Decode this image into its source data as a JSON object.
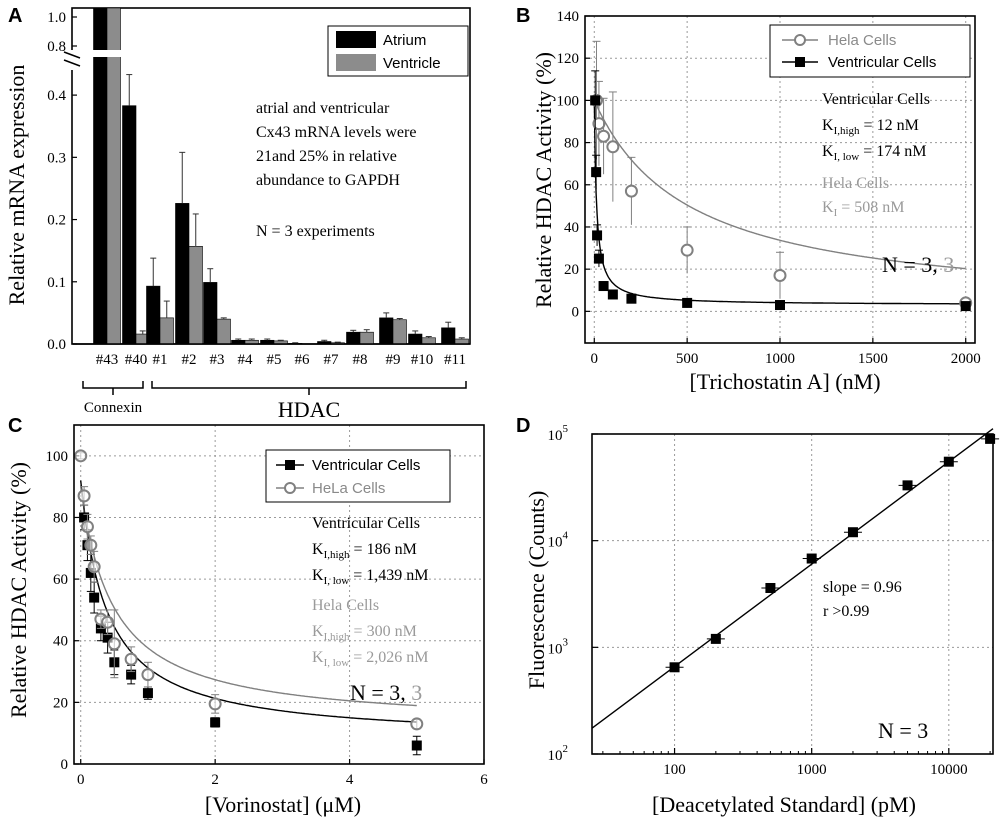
{
  "chart_data": [
    {
      "id": "A",
      "type": "bar",
      "panel_letter": "A",
      "ylabel": "Relative mRNA expression",
      "ylim_lower": [
        0,
        0.45
      ],
      "ylim_upper": [
        0.8,
        1.0
      ],
      "y_ticks_lower": [
        "0.0",
        "0.1",
        "0.2",
        "0.3",
        "0.4"
      ],
      "y_ticks_upper": [
        "0.8",
        "1.0"
      ],
      "categories": [
        "#43",
        "#40",
        "#1",
        "#2",
        "#3",
        "#4",
        "#5",
        "#6",
        "#7",
        "#8",
        "#9",
        "#10",
        "#11"
      ],
      "series": [
        {
          "name": "Atrium",
          "color": "#000000",
          "values": [
            1.0,
            0.383,
            0.093,
            0.226,
            0.099,
            0.006,
            0.006,
            0.001,
            0.004,
            0.019,
            0.042,
            0.016,
            0.026
          ],
          "errors": [
            0.0,
            0.05,
            0.045,
            0.082,
            0.022,
            0.002,
            0.002,
            0.001,
            0.002,
            0.003,
            0.008,
            0.005,
            0.009
          ]
        },
        {
          "name": "Ventricle",
          "color": "#8c8c8c",
          "values": [
            1.0,
            0.016,
            0.042,
            0.157,
            0.04,
            0.006,
            0.005,
            0.0,
            0.002,
            0.019,
            0.039,
            0.01,
            0.008
          ],
          "errors": [
            0.0,
            0.005,
            0.027,
            0.052,
            0.002,
            0.002,
            0.001,
            0.0,
            0.001,
            0.004,
            0.002,
            0.002,
            0.002
          ]
        }
      ],
      "group_labels": {
        "connexin": "Connexin",
        "hdac": "HDAC"
      },
      "annotation_lines": [
        "atrial and ventricular",
        "Cx43 mRNA levels were",
        "21and 25% in relative",
        "abundance to GAPDH"
      ],
      "n_label": "N = 3 experiments"
    },
    {
      "id": "B",
      "type": "scatter",
      "panel_letter": "B",
      "xlabel": "[Trichostatin A]  (nM)",
      "ylabel": "Relative HDAC Activity (%)",
      "xlim": [
        -50,
        2050
      ],
      "ylim": [
        -15,
        140
      ],
      "x_ticks": [
        0,
        500,
        1000,
        1500,
        2000
      ],
      "y_ticks": [
        0,
        20,
        40,
        60,
        80,
        100,
        120,
        140
      ],
      "series": [
        {
          "name": "Hela Cells",
          "marker": "open-circle",
          "color": "#808080",
          "x": [
            12,
            25,
            50,
            100,
            200,
            500,
            1000,
            2000
          ],
          "y": [
            100,
            89,
            83,
            78,
            57,
            29,
            17,
            4
          ],
          "err": [
            28,
            20,
            18,
            26,
            16,
            11,
            11,
            2
          ]
        },
        {
          "name": "Ventricular Cells",
          "marker": "filled-square",
          "color": "#000000",
          "x": [
            5,
            10,
            15,
            25,
            50,
            100,
            200,
            500,
            1000,
            2000
          ],
          "y": [
            100,
            66,
            36,
            25,
            12,
            8,
            6,
            4,
            3,
            2.5
          ],
          "err": [
            14,
            8,
            5,
            4,
            2,
            1.5,
            1,
            1,
            1,
            0.5
          ]
        }
      ],
      "fit_curves": [
        {
          "name": "Hela fit",
          "color": "#808080",
          "ki": 508,
          "top": 100,
          "bottom": 0
        },
        {
          "name": "Ventricular fit",
          "color": "#000000",
          "ki": 12,
          "top": 100,
          "bottom": 3
        }
      ],
      "annotation": {
        "ventricular_title": "Ventricular Cells",
        "k_symbol": "K",
        "k_high_sub": "I,high",
        "k_high_value": " = 12 nM",
        "k_low_sub": "I, low",
        "k_low_value": " = 174 nM",
        "hela_title": "Hela Cells",
        "hela_k_sub": "I",
        "hela_k_value": " = 508 nM"
      },
      "n_label_black": "N = 3, ",
      "n_label_gray": "3"
    },
    {
      "id": "C",
      "type": "scatter",
      "panel_letter": "C",
      "xlabel": "[Vorinostat] (μM)",
      "ylabel": "Relative HDAC Activity (%)",
      "xlim": [
        -0.1,
        6
      ],
      "ylim": [
        0,
        110
      ],
      "x_ticks": [
        0,
        2,
        4,
        6
      ],
      "y_ticks": [
        0,
        20,
        40,
        60,
        80,
        100
      ],
      "series": [
        {
          "name": "Ventricular Cells",
          "marker": "filled-square",
          "color": "#000000",
          "x": [
            0.05,
            0.1,
            0.15,
            0.2,
            0.3,
            0.4,
            0.5,
            0.75,
            1.0,
            2.0,
            5.0
          ],
          "y": [
            80,
            71,
            62,
            54,
            44,
            41,
            33,
            29,
            23,
            13.5,
            6
          ],
          "err": [
            4,
            5,
            6,
            5,
            4,
            5,
            4,
            3,
            2,
            1.5,
            3
          ]
        },
        {
          "name": "HeLa Cells",
          "marker": "open-circle",
          "color": "#808080",
          "x": [
            0.0,
            0.05,
            0.1,
            0.15,
            0.2,
            0.3,
            0.4,
            0.5,
            0.75,
            1.0,
            2.0,
            5.0
          ],
          "y": [
            100,
            87,
            77,
            71,
            64,
            47,
            46,
            39,
            34,
            29,
            19.5,
            13
          ],
          "err": [
            1,
            3,
            4,
            3,
            5,
            3,
            4,
            11,
            4,
            4,
            3,
            1.5
          ]
        }
      ],
      "fit_curves": [
        {
          "name": "Ventricular fit",
          "color": "#000000",
          "ki": 0.39,
          "top": 92,
          "bottom": 7.5
        },
        {
          "name": "HeLa fit",
          "color": "#808080",
          "ki": 0.49,
          "top": 90,
          "bottom": 12
        }
      ],
      "annotation": {
        "ventricular_title": "Ventricular Cells",
        "k_symbol": "K",
        "k_high_sub": "I,high",
        "k_high_value": " = 186 nM",
        "k_low_sub": "I, low",
        "k_low_value": " = 1,439 nM",
        "hela_title": "Hela Cells",
        "hela_k_high_value": " = 300 nM",
        "hela_k_low_value": " = 2,026 nM"
      },
      "n_label_black": "N = 3, ",
      "n_label_gray": "3"
    },
    {
      "id": "D",
      "type": "scatter",
      "panel_letter": "D",
      "xlabel": "[Deacetylated Standard]  (pM)",
      "ylabel": "Fluorescence  (Counts)",
      "x_scale": "log",
      "y_scale": "log",
      "xlim": [
        25,
        21000
      ],
      "ylim": [
        100,
        100000
      ],
      "x_ticks": [
        "100",
        "1000",
        "10000"
      ],
      "y_ticks": [
        "10",
        "10",
        "10",
        "10"
      ],
      "y_tick_exponents": [
        "2",
        "3",
        "4",
        "5"
      ],
      "series": [
        {
          "name": "Standard",
          "marker": "filled-square",
          "color": "#000000",
          "x": [
            100,
            200,
            500,
            1000,
            2000,
            5000,
            10000,
            20000
          ],
          "y": [
            650,
            1200,
            3600,
            6800,
            12000,
            33000,
            55000,
            90000
          ]
        }
      ],
      "fit_line": {
        "slope": 0.96,
        "intercept_log": 0.9
      },
      "annotation": [
        "slope = 0.96",
        "r >0.99"
      ],
      "n_label": "N = 3"
    }
  ]
}
